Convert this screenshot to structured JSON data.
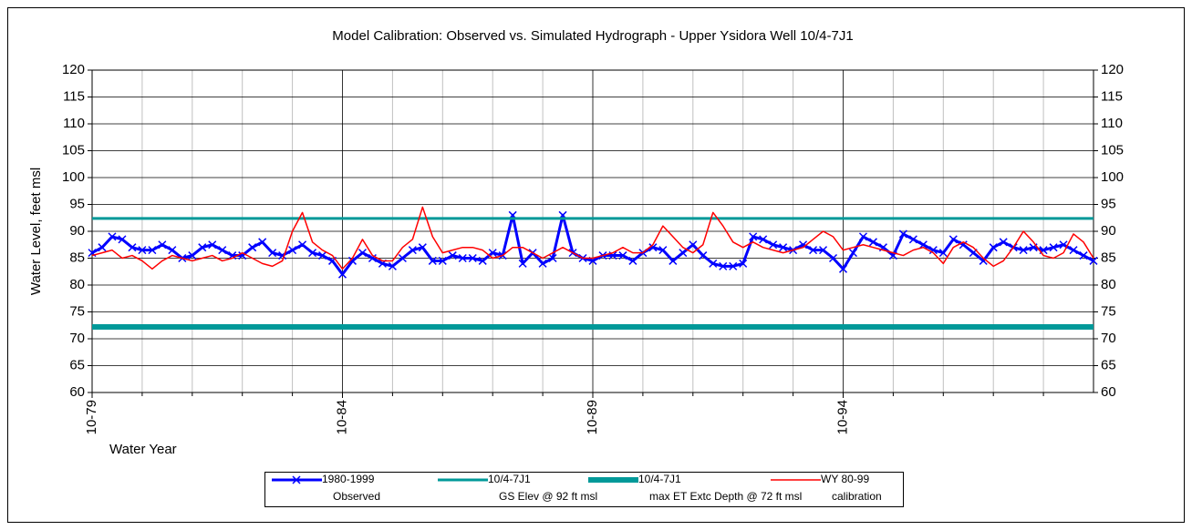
{
  "chart_data": {
    "type": "line",
    "title": "Model Calibration: Observed vs. Simulated Hydrograph - Upper Ysidora Well 10/4-7J1",
    "y_label": "Water Level, feet msl",
    "x_label": "Water Year",
    "xlim": [
      1979.75,
      1999.75
    ],
    "xticks": [
      {
        "value": 1979.75,
        "label": "10-79"
      },
      {
        "value": 1984.75,
        "label": "10-84"
      },
      {
        "value": 1989.75,
        "label": "10-89"
      },
      {
        "value": 1994.75,
        "label": "10-94"
      }
    ],
    "xminorticks": [
      1980.75,
      1981.75,
      1982.75,
      1983.75,
      1985.75,
      1986.75,
      1987.75,
      1988.75,
      1990.75,
      1991.75,
      1992.75,
      1993.75,
      1995.75,
      1996.75,
      1997.75,
      1998.75
    ],
    "ylim": [
      60,
      120
    ],
    "yticks": [
      60,
      65,
      70,
      75,
      80,
      85,
      90,
      95,
      100,
      105,
      110,
      115,
      120
    ],
    "grid": true,
    "x": [
      1979.75,
      1979.95,
      1980.15,
      1980.35,
      1980.55,
      1980.75,
      1980.95,
      1981.15,
      1981.35,
      1981.55,
      1981.75,
      1981.95,
      1982.15,
      1982.35,
      1982.55,
      1982.75,
      1982.95,
      1983.15,
      1983.35,
      1983.55,
      1983.75,
      1983.95,
      1984.15,
      1984.35,
      1984.55,
      1984.75,
      1984.95,
      1985.15,
      1985.35,
      1985.55,
      1985.75,
      1985.95,
      1986.15,
      1986.35,
      1986.55,
      1986.75,
      1986.95,
      1987.15,
      1987.35,
      1987.55,
      1987.75,
      1987.95,
      1988.15,
      1988.35,
      1988.55,
      1988.75,
      1988.95,
      1989.15,
      1989.35,
      1989.55,
      1989.75,
      1989.95,
      1990.15,
      1990.35,
      1990.55,
      1990.75,
      1990.95,
      1991.15,
      1991.35,
      1991.55,
      1991.75,
      1991.95,
      1992.15,
      1992.35,
      1992.55,
      1992.75,
      1992.95,
      1993.15,
      1993.35,
      1993.55,
      1993.75,
      1993.95,
      1994.15,
      1994.35,
      1994.55,
      1994.75,
      1994.95,
      1995.15,
      1995.35,
      1995.55,
      1995.75,
      1995.95,
      1996.15,
      1996.35,
      1996.55,
      1996.75,
      1996.95,
      1997.15,
      1997.35,
      1997.55,
      1997.75,
      1997.95,
      1998.15,
      1998.35,
      1998.55,
      1998.75,
      1998.95,
      1999.15,
      1999.35,
      1999.55,
      1999.75
    ],
    "series": [
      {
        "name": [
          "1980-1999",
          "Observed"
        ],
        "color": "#0000ff",
        "marker": "x",
        "values": [
          86,
          87,
          89,
          88.5,
          87,
          86.5,
          86.5,
          87.5,
          86.5,
          85,
          85.5,
          87,
          87.5,
          86.5,
          85.5,
          85.5,
          87,
          88,
          86,
          85.5,
          86.5,
          87.5,
          86,
          85.5,
          84.5,
          82,
          84.5,
          86,
          85,
          84,
          83.5,
          85,
          86.5,
          87,
          84.5,
          84.5,
          85.5,
          85,
          85,
          84.5,
          86,
          85.5,
          93,
          84,
          86,
          84,
          85,
          93,
          86,
          85,
          84.5,
          85.5,
          85.5,
          85.5,
          84.5,
          86,
          87,
          86.5,
          84.5,
          86,
          87.5,
          85.5,
          84,
          83.5,
          83.5,
          84,
          89,
          88.5,
          87.5,
          87,
          86.5,
          87.5,
          86.5,
          86.5,
          85,
          83,
          86,
          89,
          88,
          87,
          85.5,
          89.5,
          88.5,
          87.5,
          86.5,
          86,
          88.5,
          87.5,
          86,
          84.5,
          87,
          88,
          87,
          86.5,
          87,
          86.5,
          87,
          87.5,
          86.5,
          85.5,
          84.5
        ]
      },
      {
        "name": [
          "10/4-7J1",
          "GS Elev @ 92 ft msl"
        ],
        "color": "#009999",
        "value": 92.4,
        "width": 3
      },
      {
        "name": [
          "10/4-7J1",
          "max ET Extc Depth @ 72 ft msl"
        ],
        "color": "#009999",
        "value": 72.2,
        "width": 6
      },
      {
        "name": [
          "WY 80-99",
          "calibration"
        ],
        "color": "#ff0000",
        "values": [
          85.5,
          86,
          86.5,
          85,
          85.5,
          84.5,
          83,
          84.5,
          85.5,
          85,
          84.5,
          85,
          85.5,
          84.5,
          85,
          86,
          85,
          84,
          83.5,
          84.5,
          90,
          93.5,
          88,
          86.5,
          85.5,
          83,
          85,
          88.5,
          85.5,
          84.5,
          84.5,
          87,
          88.5,
          94.5,
          89,
          86,
          86.5,
          87,
          87,
          86.5,
          85,
          85.5,
          87,
          87,
          86,
          85,
          86,
          87,
          86,
          85,
          85,
          85.5,
          86,
          87,
          86,
          86,
          87.5,
          91,
          89,
          87,
          86,
          87.5,
          93.5,
          91,
          88,
          87,
          88,
          87,
          86.5,
          86,
          86.5,
          87,
          88.5,
          90,
          89,
          86.5,
          87,
          87.5,
          87,
          86.5,
          86,
          85.5,
          86.5,
          87,
          86,
          84,
          87,
          88,
          87,
          85,
          83.5,
          84.5,
          87,
          90,
          88,
          85.5,
          85,
          86,
          89.5,
          88,
          85
        ]
      }
    ]
  }
}
